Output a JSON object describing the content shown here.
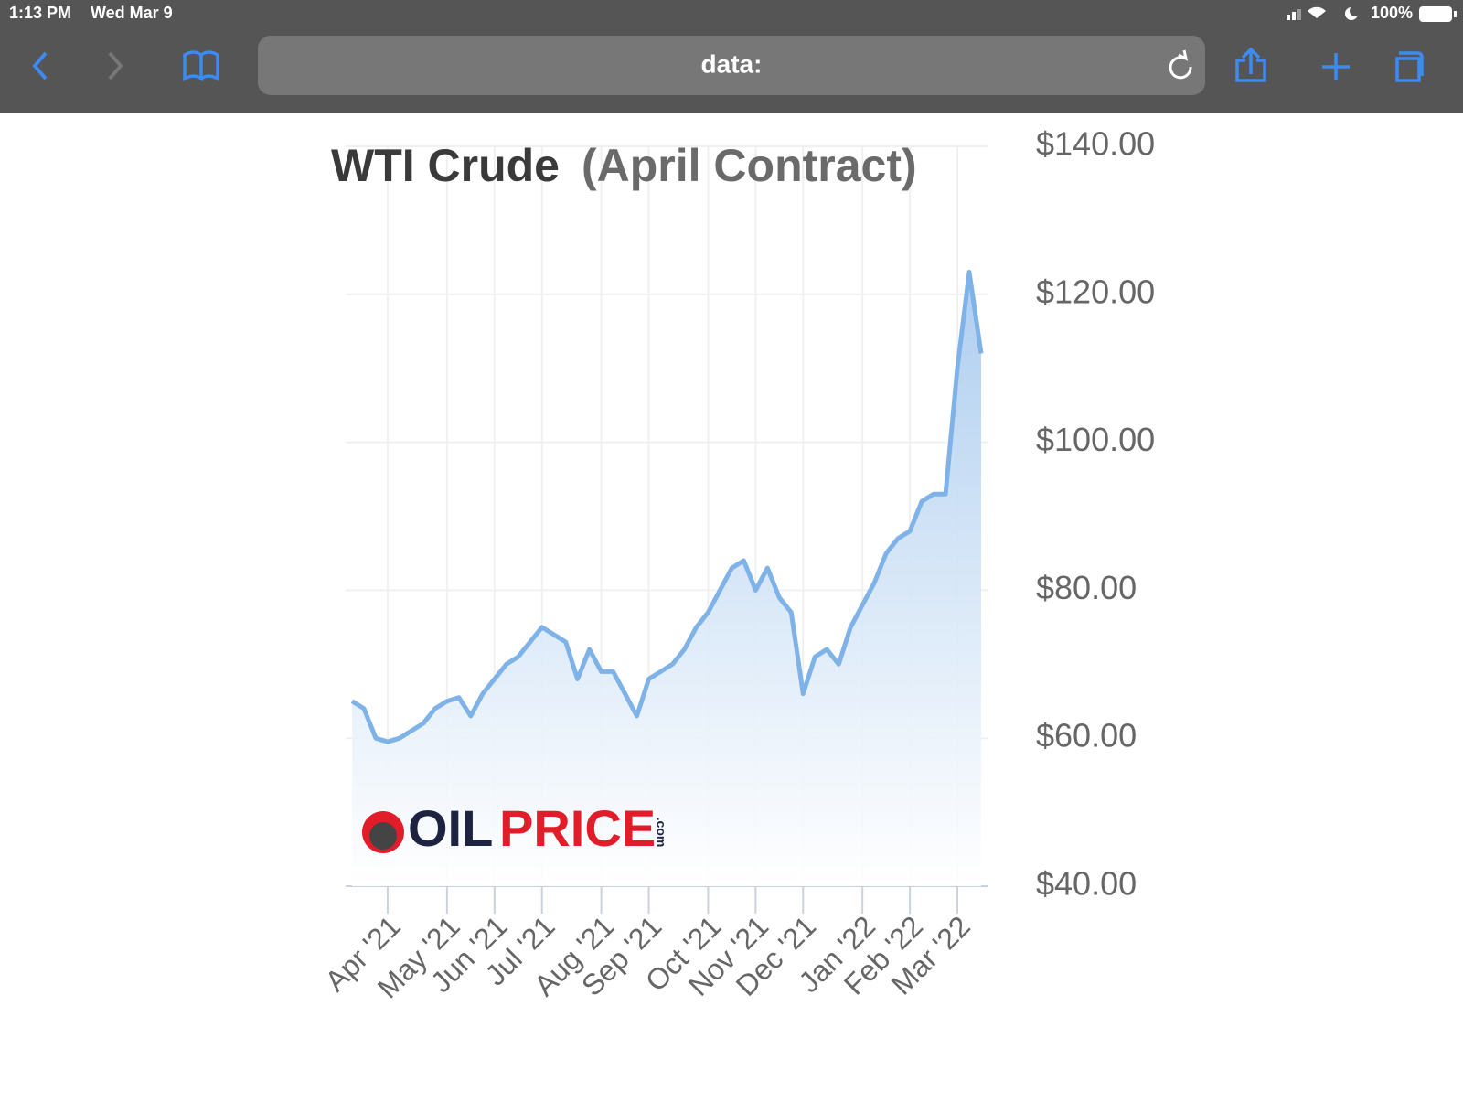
{
  "status_bar": {
    "time": "1:13 PM",
    "date": "Wed Mar 9",
    "battery": "100%"
  },
  "browser": {
    "url": "data:"
  },
  "chart_data": {
    "type": "line",
    "title": "WTI Crude",
    "subtitle": "(April Contract)",
    "logo": {
      "oil": "OIL",
      "price": "PRICE",
      "com": ".com"
    },
    "categories": [
      null,
      null,
      null,
      "Apr '21",
      null,
      null,
      null,
      null,
      "May '21",
      null,
      null,
      null,
      "Jun '21",
      null,
      null,
      null,
      "Jul '21",
      null,
      null,
      null,
      null,
      "Aug '21",
      null,
      null,
      null,
      "Sep '21",
      null,
      null,
      null,
      null,
      "Oct '21",
      null,
      null,
      null,
      "Nov '21",
      null,
      null,
      null,
      "Dec '21",
      null,
      null,
      null,
      null,
      "Jan '22",
      null,
      null,
      null,
      "Feb '22",
      null,
      null,
      null,
      "Mar '22",
      null,
      null
    ],
    "values": [
      65,
      64,
      60,
      59.5,
      60,
      61,
      62,
      64,
      65,
      65.5,
      63,
      66,
      68,
      70,
      71,
      73,
      75,
      74,
      73,
      68,
      72,
      69,
      69,
      66,
      63,
      68,
      69,
      70,
      72,
      75,
      77,
      80,
      83,
      84,
      80,
      83,
      79,
      77,
      66,
      71,
      72,
      70,
      75,
      78,
      81,
      85,
      87,
      88,
      92,
      93,
      93,
      110,
      123,
      112
    ],
    "color": "#7fb3e8",
    "ylim": [
      40,
      140
    ],
    "yticks": [
      {
        "value": 40,
        "label": "$40.00"
      },
      {
        "value": 60,
        "label": "$60.00"
      },
      {
        "value": 80,
        "label": "$80.00"
      },
      {
        "value": 100,
        "label": "$100.00"
      },
      {
        "value": 120,
        "label": "$120.00"
      },
      {
        "value": 140,
        "label": "$140.00"
      }
    ],
    "grid": true
  }
}
